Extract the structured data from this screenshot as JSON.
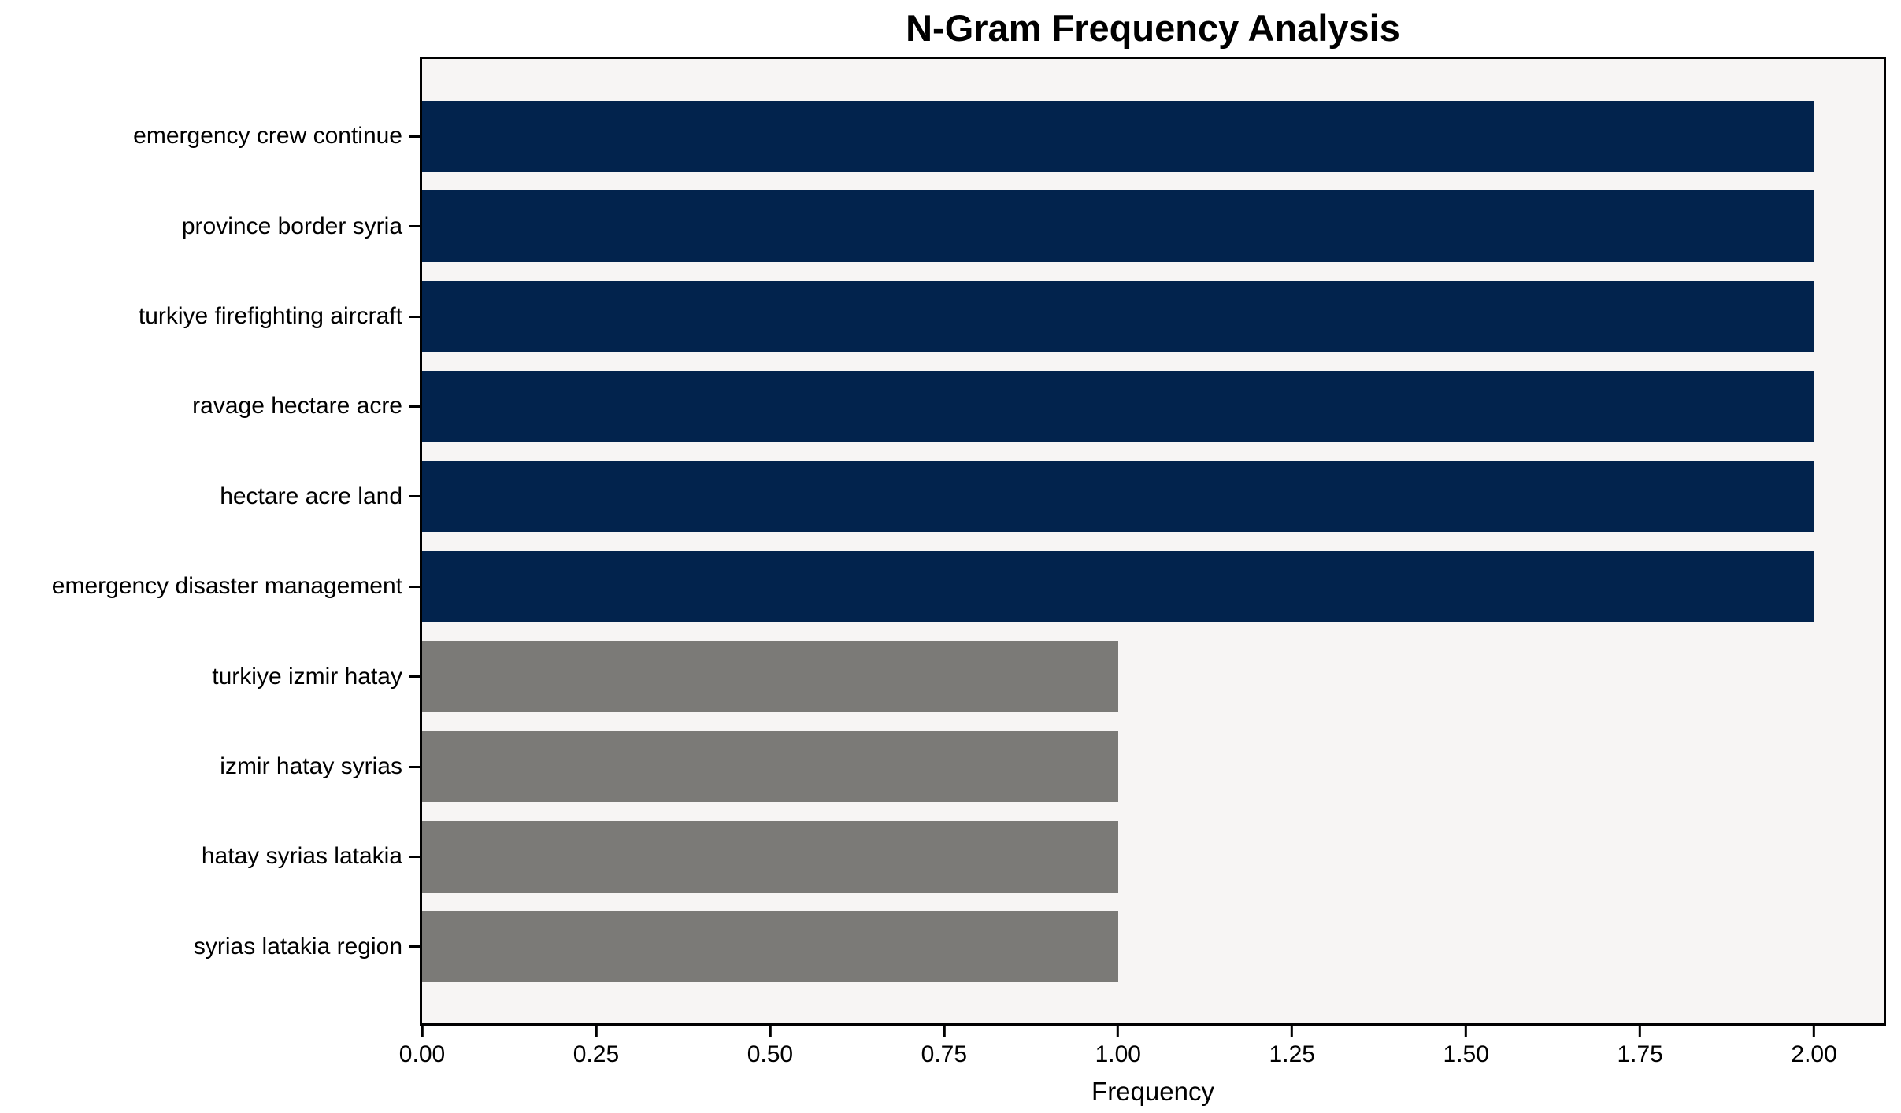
{
  "chart_data": {
    "type": "bar",
    "orientation": "horizontal",
    "title": "N-Gram Frequency Analysis",
    "xlabel": "Frequency",
    "categories": [
      "emergency crew continue",
      "province border syria",
      "turkiye firefighting aircraft",
      "ravage hectare acre",
      "hectare acre land",
      "emergency disaster management",
      "turkiye izmir hatay",
      "izmir hatay syrias",
      "hatay syrias latakia",
      "syrias latakia region"
    ],
    "values": [
      2,
      2,
      2,
      2,
      2,
      2,
      1,
      1,
      1,
      1
    ],
    "bar_colors": [
      "#02234d",
      "#02234d",
      "#02234d",
      "#02234d",
      "#02234d",
      "#02234d",
      "#7b7a77",
      "#7b7a77",
      "#7b7a77",
      "#7b7a77"
    ],
    "xlim": [
      0,
      2.1
    ],
    "xticks": [
      "0.00",
      "0.25",
      "0.50",
      "0.75",
      "1.00",
      "1.25",
      "1.50",
      "1.75",
      "2.00"
    ],
    "xtick_values": [
      0,
      0.25,
      0.5,
      0.75,
      1.0,
      1.25,
      1.5,
      1.75,
      2.0
    ],
    "grid": false,
    "legend_position": "none",
    "plot_background": "#f7f5f4",
    "figure_background": "#ffffff",
    "axis_color": "#000000",
    "colors": {
      "high_frequency_bar": "#02234d",
      "low_frequency_bar": "#7b7a77"
    }
  }
}
